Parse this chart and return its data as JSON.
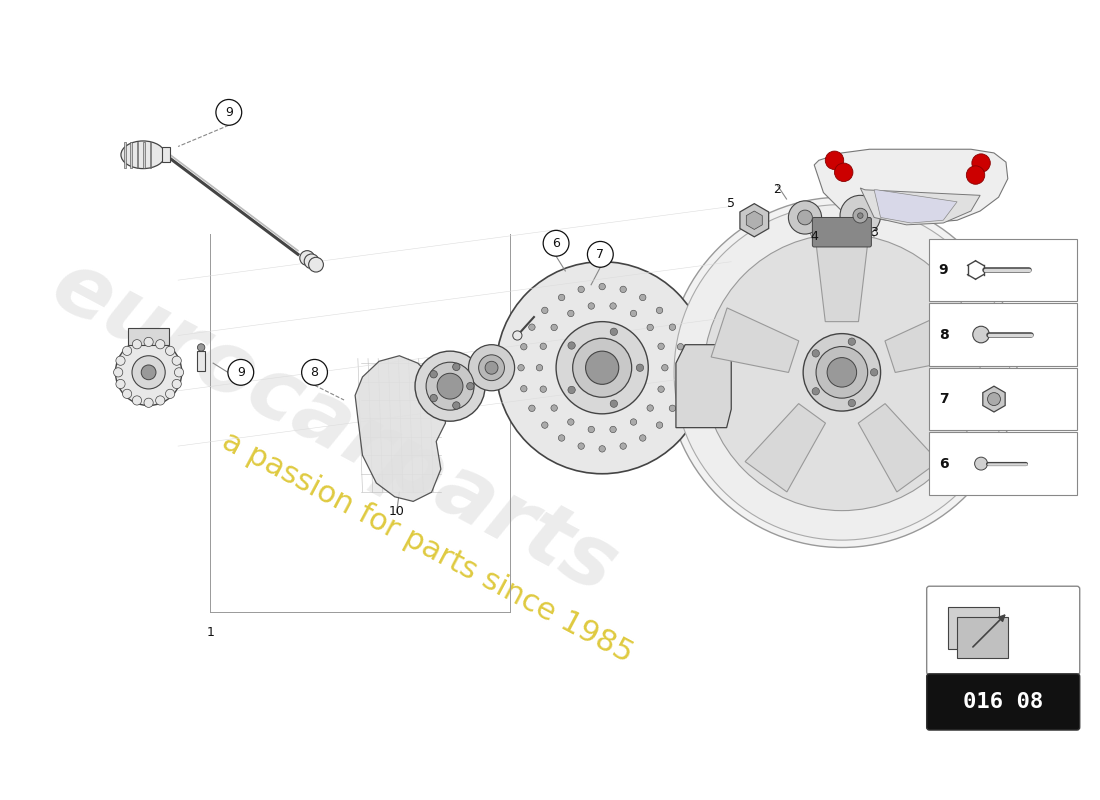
{
  "background_color": "#ffffff",
  "main_color": "#444444",
  "light_gray": "#cccccc",
  "mid_gray": "#999999",
  "dark_gray": "#666666",
  "part_fill": "#e8e8e8",
  "watermark_text": "eurocarparts",
  "watermark_subtext": "a passion for parts since 1985",
  "diagram_id": "016 08",
  "label_color": "#111111",
  "red_color": "#cc0000",
  "yellow_watermark": "#d4b800"
}
